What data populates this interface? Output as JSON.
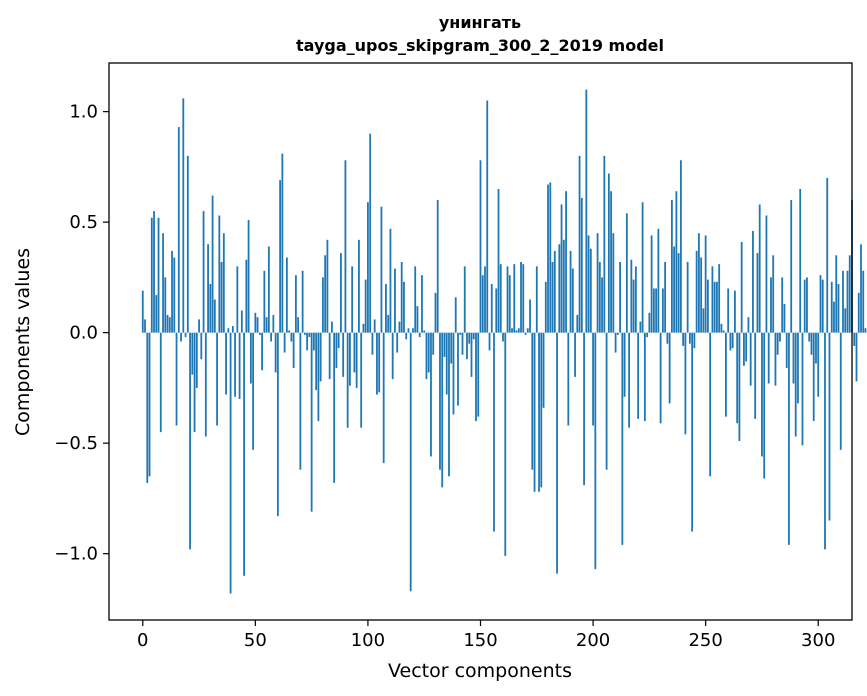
{
  "chart_data": {
    "type": "bar",
    "title": "унингать",
    "subtitle": "tayga_upos_skipgram_300_2_2019 model",
    "xlabel": "Vector components",
    "ylabel": "Components values",
    "xlim": [
      -15,
      315
    ],
    "ylim": [
      -1.3,
      1.22
    ],
    "xticks": [
      0,
      50,
      100,
      150,
      200,
      250,
      300
    ],
    "yticks": [
      -1.0,
      -0.5,
      0.0,
      0.5,
      1.0
    ],
    "ytick_labels": [
      "−1.0",
      "−0.5",
      "0.0",
      "0.5",
      "1.0"
    ],
    "bar_color": "#1f77b4",
    "values": [
      0.19,
      0.06,
      -0.68,
      -0.65,
      0.52,
      0.55,
      0.17,
      0.52,
      -0.45,
      0.45,
      0.25,
      0.08,
      0.07,
      0.37,
      0.34,
      -0.42,
      0.93,
      -0.04,
      1.06,
      -0.02,
      0.8,
      -0.98,
      -0.19,
      -0.45,
      -0.25,
      0.06,
      -0.12,
      0.55,
      -0.47,
      0.4,
      0.22,
      0.62,
      0.15,
      -0.42,
      0.53,
      0.32,
      0.45,
      -0.28,
      0.02,
      -1.18,
      0.03,
      -0.29,
      0.3,
      -0.3,
      0.1,
      -1.1,
      0.33,
      0.51,
      -0.23,
      -0.53,
      0.09,
      0.07,
      -0.01,
      -0.17,
      0.28,
      0.07,
      0.39,
      -0.04,
      0.08,
      -0.18,
      -0.83,
      0.69,
      0.81,
      -0.09,
      0.34,
      0.01,
      -0.04,
      -0.16,
      0.26,
      0.07,
      -0.62,
      0.28,
      -0.01,
      -0.08,
      -0.02,
      -0.81,
      -0.08,
      -0.26,
      -0.4,
      -0.22,
      0.25,
      0.35,
      0.42,
      -0.21,
      0.05,
      -0.68,
      -0.16,
      -0.07,
      0.36,
      -0.2,
      0.78,
      -0.43,
      -0.24,
      0.3,
      -0.18,
      -0.25,
      0.42,
      -0.43,
      0.04,
      0.24,
      0.59,
      0.9,
      -0.1,
      0.06,
      -0.28,
      -0.27,
      0.57,
      -0.59,
      0.22,
      0.08,
      0.47,
      -0.21,
      0.29,
      -0.09,
      0.05,
      0.32,
      0.23,
      -0.03,
      0.02,
      -1.17,
      0.02,
      0.3,
      0.12,
      -0.02,
      0.26,
      0.01,
      -0.21,
      -0.18,
      -0.56,
      -0.1,
      0.18,
      0.6,
      -0.62,
      -0.7,
      -0.11,
      -0.28,
      -0.65,
      -0.14,
      -0.37,
      0.16,
      -0.33,
      -0.01,
      -0.1,
      0.3,
      -0.12,
      -0.05,
      -0.2,
      -0.03,
      -0.4,
      -0.38,
      0.78,
      0.26,
      0.3,
      1.05,
      -0.08,
      0.22,
      -0.9,
      0.2,
      0.65,
      0.31,
      -0.04,
      -1.01,
      0.3,
      0.26,
      0.02,
      0.31,
      0.01,
      0.02,
      0.32,
      0.31,
      -0.01,
      0.02,
      0.15,
      -0.62,
      -0.72,
      0.3,
      -0.72,
      -0.7,
      -0.34,
      0.23,
      0.67,
      0.68,
      0.32,
      0.37,
      -1.09,
      0.4,
      0.58,
      0.42,
      0.64,
      -0.42,
      0.37,
      0.29,
      -0.2,
      0.08,
      0.8,
      0.61,
      -0.69,
      1.1,
      0.44,
      0.38,
      -0.42,
      -1.07,
      0.45,
      0.32,
      0.25,
      0.8,
      -0.62,
      0.72,
      0.64,
      0.45,
      -0.09,
      -0.01,
      0.32,
      -0.96,
      -0.29,
      0.54,
      -0.43,
      0.33,
      0.24,
      0.3,
      -0.39,
      0.05,
      0.59,
      -0.4,
      -0.02,
      0.09,
      0.44,
      0.2,
      0.2,
      0.47,
      -0.41,
      0.2,
      0.32,
      -0.05,
      -0.32,
      0.6,
      0.39,
      0.64,
      0.36,
      0.78,
      -0.06,
      -0.46,
      0.32,
      -0.05,
      -0.9,
      -0.07,
      0.37,
      0.45,
      0.34,
      0.11,
      0.44,
      0.24,
      -0.65,
      0.3,
      0.23,
      0.23,
      0.31,
      0.04,
      0.01,
      -0.38,
      0.2,
      -0.08,
      -0.07,
      0.19,
      -0.41,
      -0.49,
      0.41,
      -0.15,
      -0.13,
      0.07,
      -0.24,
      0.46,
      -0.39,
      0.36,
      0.58,
      -0.56,
      -0.66,
      0.53,
      -0.23,
      0.25,
      0.35,
      -0.24,
      -0.1,
      -0.04,
      0.25,
      0.13,
      -0.16,
      -0.96,
      0.6,
      -0.23,
      -0.47,
      -0.32,
      0.65,
      -0.51,
      0.24,
      0.25,
      -0.04,
      -0.1,
      -0.4,
      -0.14,
      -0.29,
      0.26,
      0.24,
      -0.98,
      0.7,
      -0.85,
      0.23,
      0.14,
      0.35,
      0.22,
      -0.53,
      0.28,
      0.11,
      0.28,
      0.35,
      0.6,
      -0.06,
      -0.22,
      0.18,
      0.4,
      0.28,
      0.02
    ]
  }
}
